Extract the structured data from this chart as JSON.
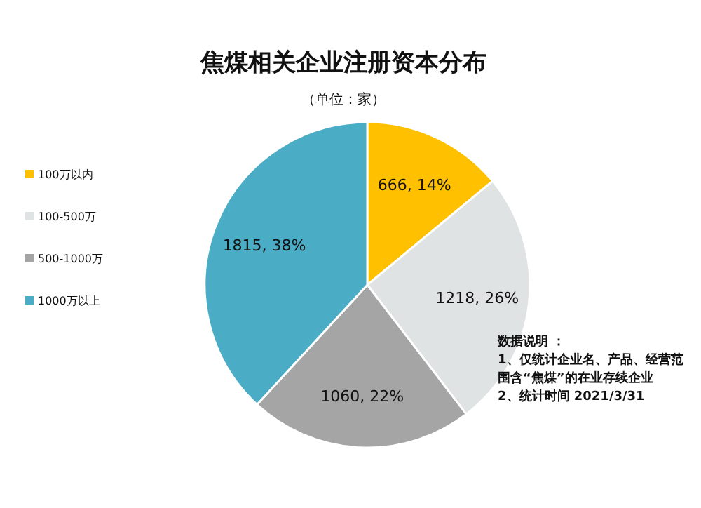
{
  "chart_data": {
    "type": "pie",
    "title": "焦煤相关企业注册资本分布",
    "subtitle": "（单位：家）",
    "categories": [
      "100万以内",
      "100-500万",
      "500-1000万",
      "1000万以上"
    ],
    "values": [
      666,
      1218,
      1060,
      1815
    ],
    "value_labels": [
      "666, 14%",
      "1218, 26%",
      "1060, 22%",
      "1815, 38%"
    ],
    "colors": [
      "#ffc000",
      "#dfe3e3",
      "#a5a5a5",
      "#4bacc6"
    ],
    "legend": "left",
    "annotations": [
      "数据说明 ：",
      "1、仅统计企业名、产品、经营范围含“焦煤”的在业存续企业",
      "2、统计时间 2021/3/31"
    ]
  }
}
